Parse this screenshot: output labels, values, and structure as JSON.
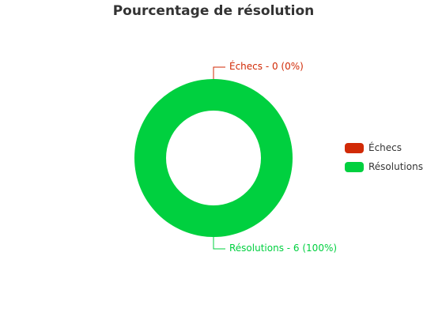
{
  "chart_data": {
    "type": "pie",
    "title": "Pourcentage de résolution",
    "donut": true,
    "legend_position": "right",
    "series": [
      {
        "name": "Échecs",
        "value": 0,
        "percent": 0,
        "label": "Échecs - 0 (0%)",
        "color": "#d12a06"
      },
      {
        "name": "Résolutions",
        "value": 6,
        "percent": 100,
        "label": "Résolutions - 6 (100%)",
        "color": "#00d03f"
      }
    ]
  }
}
